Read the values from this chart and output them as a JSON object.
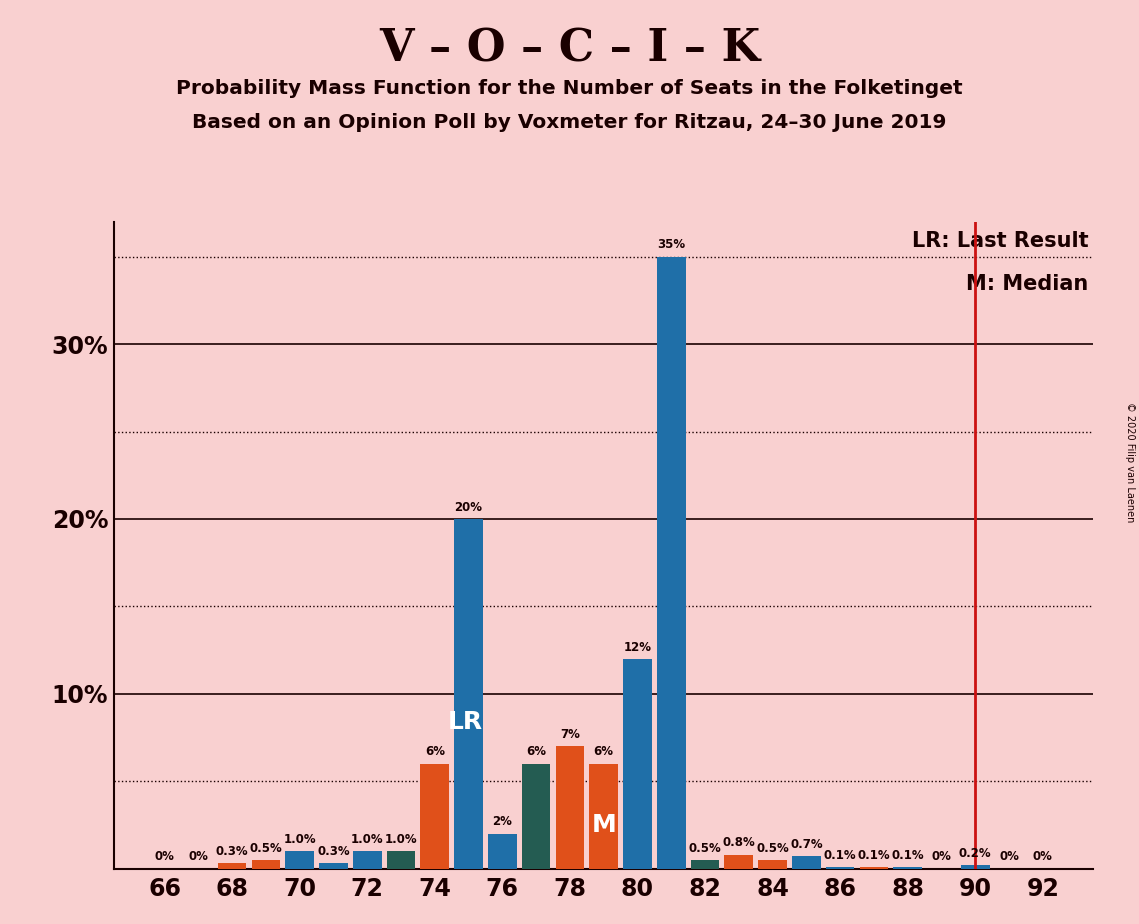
{
  "title1": "V – O – C – I – K",
  "title2": "Probability Mass Function for the Number of Seats in the Folketinget",
  "title3": "Based on an Opinion Poll by Voxmeter for Ritzau, 24–30 June 2019",
  "copyright": "© 2020 Filip van Laenen",
  "background_color": "#f9d0d0",
  "seats": [
    66,
    67,
    68,
    69,
    70,
    71,
    72,
    73,
    74,
    75,
    76,
    77,
    78,
    79,
    80,
    81,
    82,
    83,
    84,
    85,
    86,
    87,
    88,
    89,
    90,
    91,
    92
  ],
  "probabilities": [
    0.0,
    0.0,
    0.3,
    0.5,
    1.0,
    0.3,
    1.0,
    1.0,
    6.0,
    20.0,
    2.0,
    6.0,
    7.0,
    6.0,
    12.0,
    35.0,
    0.5,
    0.8,
    0.5,
    0.7,
    0.1,
    0.1,
    0.1,
    0.0,
    0.2,
    0.0,
    0.0
  ],
  "bar_colors_by_seat": {
    "66": "#1f6fa8",
    "67": "#1f6fa8",
    "68": "#e0501a",
    "69": "#e0501a",
    "70": "#1f6fa8",
    "71": "#1f6fa8",
    "72": "#1f6fa8",
    "73": "#245c52",
    "74": "#e0501a",
    "75": "#1f6fa8",
    "76": "#1f6fa8",
    "77": "#245c52",
    "78": "#e0501a",
    "79": "#e0501a",
    "80": "#1f6fa8",
    "81": "#1f6fa8",
    "82": "#245c52",
    "83": "#e0501a",
    "84": "#e0501a",
    "85": "#1f6fa8",
    "86": "#1f6fa8",
    "87": "#e0501a",
    "88": "#1f6fa8",
    "89": "#1f6fa8",
    "90": "#1f6fa8",
    "91": "#e0501a",
    "92": "#1f6fa8"
  },
  "lr_seat": 75,
  "median_seat": 79,
  "red_line_seat": 90,
  "ylim_max": 37,
  "solid_yticks": [
    10,
    20,
    30
  ],
  "dotted_yticks": [
    5,
    15,
    25,
    35
  ],
  "ytick_labels_val": [
    10,
    20,
    30
  ],
  "lr_label": "LR: Last Result",
  "median_label": "M: Median"
}
